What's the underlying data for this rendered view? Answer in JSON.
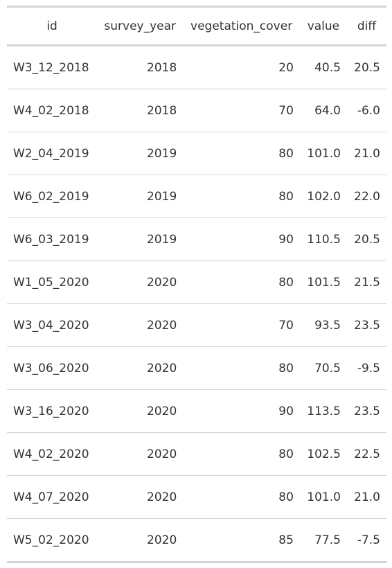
{
  "table": {
    "columns": [
      {
        "key": "id",
        "label": "id",
        "align": "l",
        "head_align": "c"
      },
      {
        "key": "survey_year",
        "label": "survey_year",
        "align": "r",
        "head_align": "c"
      },
      {
        "key": "vegetation_cover",
        "label": "vegetation_cover",
        "align": "r",
        "head_align": "c"
      },
      {
        "key": "value",
        "label": "value",
        "align": "r",
        "head_align": "c"
      },
      {
        "key": "diff",
        "label": "diff",
        "align": "r",
        "head_align": "c"
      }
    ],
    "rows": [
      {
        "id": "W3_12_2018",
        "survey_year": "2018",
        "vegetation_cover": "20",
        "value": "40.5",
        "diff": "20.5"
      },
      {
        "id": "W4_02_2018",
        "survey_year": "2018",
        "vegetation_cover": "70",
        "value": "64.0",
        "diff": "-6.0"
      },
      {
        "id": "W2_04_2019",
        "survey_year": "2019",
        "vegetation_cover": "80",
        "value": "101.0",
        "diff": "21.0"
      },
      {
        "id": "W6_02_2019",
        "survey_year": "2019",
        "vegetation_cover": "80",
        "value": "102.0",
        "diff": "22.0"
      },
      {
        "id": "W6_03_2019",
        "survey_year": "2019",
        "vegetation_cover": "90",
        "value": "110.5",
        "diff": "20.5"
      },
      {
        "id": "W1_05_2020",
        "survey_year": "2020",
        "vegetation_cover": "80",
        "value": "101.5",
        "diff": "21.5"
      },
      {
        "id": "W3_04_2020",
        "survey_year": "2020",
        "vegetation_cover": "70",
        "value": "93.5",
        "diff": "23.5"
      },
      {
        "id": "W3_06_2020",
        "survey_year": "2020",
        "vegetation_cover": "80",
        "value": "70.5",
        "diff": "-9.5"
      },
      {
        "id": "W3_16_2020",
        "survey_year": "2020",
        "vegetation_cover": "90",
        "value": "113.5",
        "diff": "23.5"
      },
      {
        "id": "W4_02_2020",
        "survey_year": "2020",
        "vegetation_cover": "80",
        "value": "102.5",
        "diff": "22.5"
      },
      {
        "id": "W4_07_2020",
        "survey_year": "2020",
        "vegetation_cover": "80",
        "value": "101.0",
        "diff": "21.0"
      },
      {
        "id": "W5_02_2020",
        "survey_year": "2020",
        "vegetation_cover": "85",
        "value": "77.5",
        "diff": "-7.5"
      }
    ]
  }
}
